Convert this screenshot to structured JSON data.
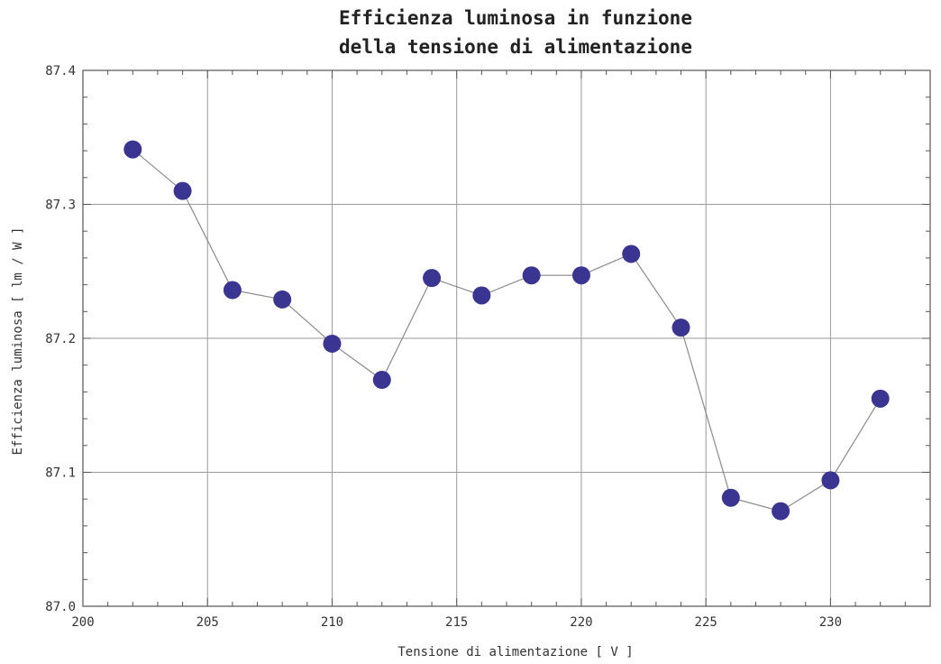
{
  "chart_data": {
    "type": "line",
    "title": [
      "Efficienza luminosa in funzione",
      "della tensione di alimentazione"
    ],
    "xlabel": "Tensione di alimentazione [ V ]",
    "ylabel": "Efficienza luminosa [ lm / W ]",
    "xlim": [
      200,
      234
    ],
    "ylim": [
      87.0,
      87.4
    ],
    "x_ticks": [
      200,
      205,
      210,
      215,
      220,
      225,
      230
    ],
    "x_tick_labels": [
      "200",
      "205",
      "210",
      "215",
      "220",
      "225",
      "230"
    ],
    "y_ticks": [
      87.0,
      87.1,
      87.2,
      87.3,
      87.4
    ],
    "y_tick_labels": [
      "87.0",
      "87.1",
      "87.2",
      "87.3",
      "87.4"
    ],
    "grid": true,
    "point_color": "#3a3590",
    "line_color": "#8a8a8a",
    "series": [
      {
        "x": [
          202,
          204,
          206,
          208,
          210,
          212,
          214,
          216,
          218,
          220,
          222,
          224,
          226,
          228,
          230,
          232
        ],
        "y": [
          87.341,
          87.31,
          87.236,
          87.229,
          87.196,
          87.169,
          87.245,
          87.232,
          87.247,
          87.247,
          87.263,
          87.208,
          87.081,
          87.071,
          87.094,
          87.155
        ]
      }
    ]
  }
}
